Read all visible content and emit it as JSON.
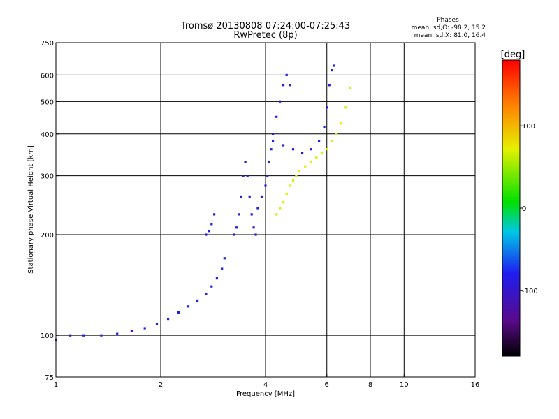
{
  "chart_data": {
    "type": "scatter",
    "title": "Tromsø 20130808 07:24:00-07:25:43",
    "subtitle": "RwPretec (8p)",
    "xlabel": "Frequency [MHz]",
    "ylabel": "Stationary phase Virtual Height [km]",
    "x_scale": "log",
    "y_scale": "log",
    "xlim": [
      1,
      16
    ],
    "ylim": [
      75,
      750
    ],
    "x_ticks": [
      1,
      2,
      4,
      6,
      8,
      10,
      16
    ],
    "x_tick_labels": [
      "1",
      "2",
      "4",
      "6",
      "8",
      "10",
      "16"
    ],
    "y_ticks": [
      75,
      100,
      200,
      300,
      400,
      500,
      600,
      750
    ],
    "y_tick_labels": [
      "75",
      "100",
      "200",
      "300",
      "400",
      "500",
      "600",
      "750"
    ],
    "grid": true,
    "phase_box": {
      "title": "Phases",
      "line1": "mean, sd,O: -98.2, 15.2",
      "line2": "mean, sd,X:  81.0, 16.4"
    },
    "colorbar": {
      "label": "[deg]",
      "range": [
        -180,
        180
      ],
      "ticks": [
        100,
        0,
        -100
      ],
      "tick_labels": [
        "100",
        "0",
        "-100"
      ],
      "colors": [
        "#000000",
        "#5a0a8a",
        "#1e1ef0",
        "#00c8e6",
        "#00e000",
        "#e6f000",
        "#ff8000",
        "#ff0000"
      ]
    },
    "series": [
      {
        "name": "O",
        "phase_color": "#2020e0",
        "segments": [
          {
            "x": [
              1.0,
              1.1,
              1.2,
              1.35,
              1.5,
              1.65,
              1.8,
              1.95,
              2.1,
              2.25,
              2.4,
              2.55,
              2.7,
              2.8,
              2.9,
              3.0,
              3.05
            ],
            "y": [
              97,
              100,
              100,
              100,
              101,
              103,
              105,
              108,
              112,
              117,
              122,
              127,
              133,
              140,
              148,
              158,
              170
            ]
          },
          {
            "x": [
              3.25,
              3.3,
              3.35,
              3.4,
              3.45,
              3.5,
              3.55,
              3.6,
              3.65,
              3.7,
              3.75
            ],
            "y": [
              200,
              210,
              230,
              260,
              300,
              330,
              300,
              260,
              230,
              210,
              200
            ]
          },
          {
            "x": [
              3.8,
              3.9,
              4.0,
              4.05,
              4.1,
              4.15,
              4.2,
              4.3,
              4.4,
              4.5,
              4.6,
              4.7
            ],
            "y": [
              240,
              260,
              280,
              300,
              330,
              360,
              400,
              450,
              500,
              560,
              600,
              560
            ]
          },
          {
            "x": [
              4.2,
              4.5,
              4.8,
              5.1,
              5.4,
              5.7,
              5.9,
              6.0,
              6.1,
              6.2,
              6.3
            ],
            "y": [
              380,
              370,
              360,
              350,
              360,
              380,
              420,
              480,
              560,
              620,
              640
            ]
          },
          {
            "x": [
              2.7,
              2.75,
              2.8,
              2.85
            ],
            "y": [
              200,
              205,
              215,
              230
            ]
          }
        ]
      },
      {
        "name": "X",
        "phase_color": "#d8f000",
        "segments": [
          {
            "x": [
              4.3,
              4.4,
              4.5,
              4.6,
              4.7,
              4.8,
              4.9,
              5.0,
              5.2,
              5.4,
              5.6,
              5.8,
              6.0,
              6.2,
              6.4,
              6.6,
              6.8,
              7.0
            ],
            "y": [
              230,
              240,
              250,
              265,
              280,
              290,
              300,
              310,
              320,
              330,
              340,
              350,
              360,
              380,
              400,
              430,
              480,
              550
            ]
          }
        ]
      }
    ]
  }
}
